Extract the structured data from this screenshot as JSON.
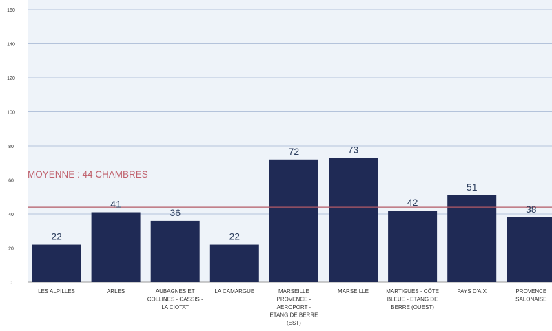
{
  "chart_data": {
    "type": "bar",
    "categories": [
      "LES ALPILLES",
      "ARLES",
      "AUBAGNES ET COLLINES - CASSIS - LA CIOTAT",
      "LA CAMARGUE",
      "MARSEILLE PROVENCE - AEROPORT - ETANG DE BERRE (EST)",
      "MARSEILLE",
      "MARTIGUES - CÔTE BLEUE - ETANG DE BERRE (OUEST)",
      "PAYS D'AIX",
      "PROVENCE SALONAISE"
    ],
    "category_lines": [
      [
        "LES ALPILLES"
      ],
      [
        "ARLES"
      ],
      [
        "AUBAGNES ET",
        "COLLINES - CASSIS -",
        "LA CIOTAT"
      ],
      [
        "LA CAMARGUE"
      ],
      [
        "MARSEILLE",
        "PROVENCE -",
        "AEROPORT -",
        "ETANG DE BERRE",
        "(EST)"
      ],
      [
        "MARSEILLE"
      ],
      [
        "MARTIGUES - CÔTE",
        "BLEUE - ETANG DE",
        "BERRE (OUEST)"
      ],
      [
        "PAYS D'AIX"
      ],
      [
        "PROVENCE",
        "SALONAISE"
      ]
    ],
    "values": [
      22,
      41,
      36,
      22,
      72,
      73,
      42,
      51,
      38
    ],
    "data_labels": [
      "22",
      "41",
      "36",
      "22",
      "72",
      "73",
      "42",
      "51",
      "38"
    ],
    "yticks": [
      0,
      20,
      40,
      60,
      80,
      100,
      120,
      140,
      160
    ],
    "ylim": [
      0,
      160
    ],
    "grid": true,
    "average": {
      "value": 44,
      "label": "MOYENNE : 44 CHAMBRES"
    },
    "colors": {
      "bar": "#1f2a55",
      "plot_background": "#eef3f9",
      "grid": "#b4c3db",
      "average_line": "#b35a66",
      "average_label": "#c0616d",
      "data_label": "#2c3e5e",
      "axis_text": "#333333"
    }
  }
}
